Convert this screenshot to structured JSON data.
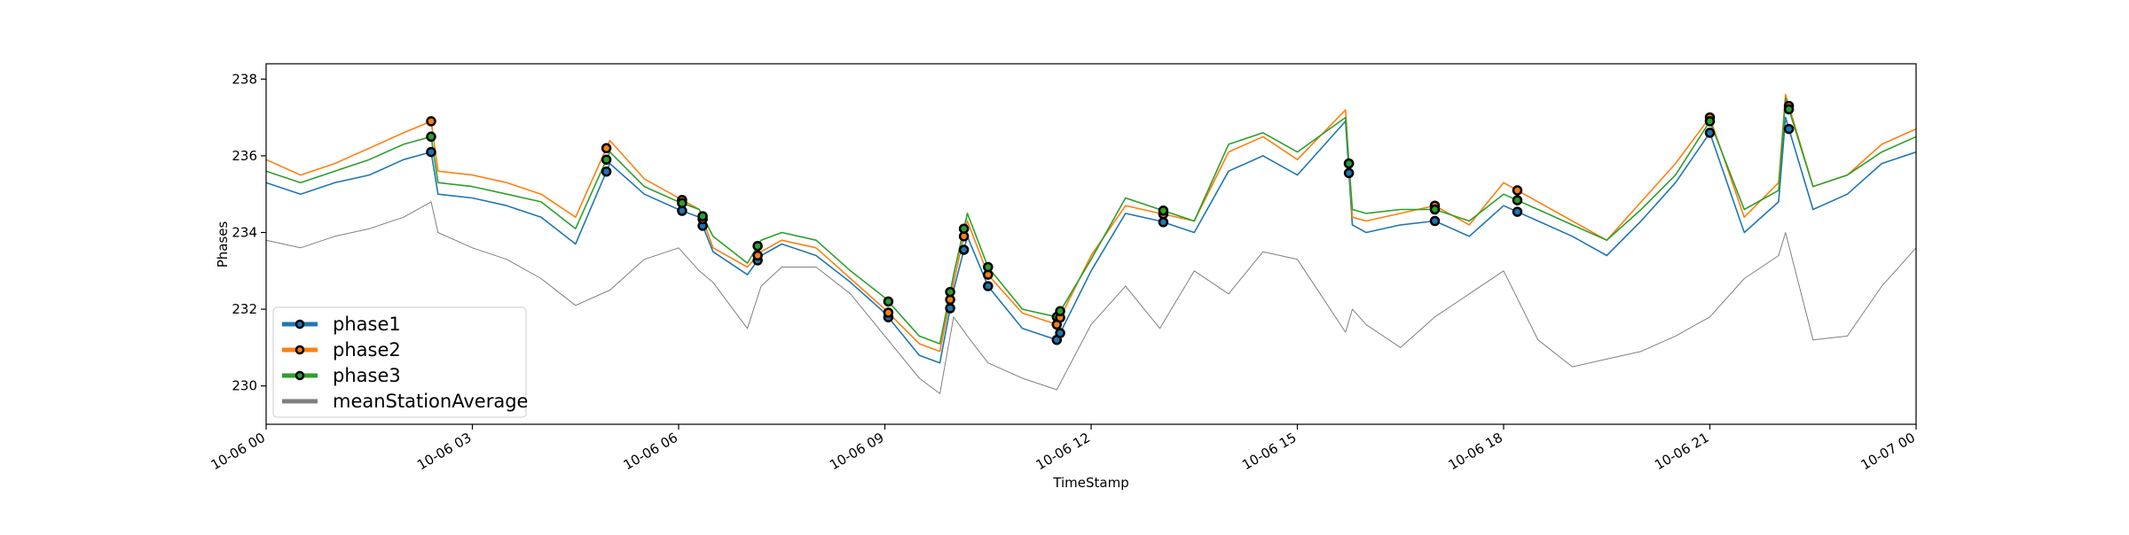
{
  "chart_data": {
    "type": "line",
    "title": "",
    "xlabel": "TimeStamp",
    "ylabel": "Phases",
    "xlim_hours": [
      0,
      24
    ],
    "ylim": [
      229.0,
      238.4
    ],
    "grid": false,
    "legend_position": "lower-left",
    "x_tick_labels": [
      "10-06 00",
      "10-06 03",
      "10-06 06",
      "10-06 09",
      "10-06 12",
      "10-06 15",
      "10-06 18",
      "10-06 21",
      "10-07 00"
    ],
    "y_ticks": [
      230,
      232,
      234,
      236,
      238
    ],
    "x_hours": [
      0,
      0.5,
      1,
      1.5,
      2,
      2.4,
      2.5,
      3,
      3.5,
      4,
      4.5,
      5,
      5.5,
      6,
      6.3,
      6.5,
      7,
      7.2,
      7.5,
      8,
      8.5,
      9,
      9.5,
      9.8,
      10,
      10.2,
      10.5,
      11,
      11.5,
      12,
      12.5,
      13,
      13.5,
      14,
      14.5,
      15,
      15.7,
      15.8,
      16,
      16.5,
      17,
      17.5,
      18,
      18.5,
      19,
      19.5,
      20,
      20.5,
      21,
      21.5,
      22,
      22.1,
      22.5,
      23,
      23.5,
      24
    ],
    "series": [
      {
        "name": "phase1",
        "color": "#1f77b4",
        "values": [
          235.3,
          235.0,
          235.3,
          235.5,
          235.9,
          236.1,
          235.0,
          234.9,
          234.7,
          234.4,
          233.7,
          235.8,
          235.0,
          234.6,
          234.4,
          233.5,
          232.9,
          233.4,
          233.7,
          233.4,
          232.7,
          231.9,
          230.8,
          230.6,
          232.5,
          233.9,
          232.6,
          231.5,
          231.2,
          233.0,
          234.5,
          234.3,
          234.0,
          235.6,
          236.0,
          235.5,
          236.9,
          234.2,
          234.0,
          234.2,
          234.3,
          233.9,
          234.7,
          234.3,
          233.9,
          233.4,
          234.3,
          235.3,
          236.6,
          234.0,
          234.8,
          237.0,
          234.6,
          235.0,
          235.8,
          236.1
        ]
      },
      {
        "name": "phase2",
        "color": "#ff7f0e",
        "values": [
          235.9,
          235.5,
          235.8,
          236.2,
          236.6,
          236.9,
          235.6,
          235.5,
          235.3,
          235.0,
          234.4,
          236.4,
          235.4,
          234.9,
          234.6,
          233.6,
          233.1,
          233.5,
          233.8,
          233.6,
          232.8,
          232.0,
          231.1,
          230.9,
          232.7,
          234.3,
          232.9,
          231.9,
          231.6,
          233.4,
          234.7,
          234.5,
          234.3,
          236.1,
          236.5,
          235.9,
          237.2,
          234.4,
          234.3,
          234.5,
          234.7,
          234.2,
          235.3,
          234.8,
          234.3,
          233.8,
          234.8,
          235.8,
          237.0,
          234.4,
          235.3,
          237.6,
          235.2,
          235.5,
          236.3,
          236.7
        ]
      },
      {
        "name": "phase3",
        "color": "#2ca02c",
        "values": [
          235.6,
          235.3,
          235.6,
          235.9,
          236.3,
          236.5,
          235.3,
          235.2,
          235.0,
          234.8,
          234.1,
          236.1,
          235.2,
          234.8,
          234.6,
          233.9,
          233.2,
          233.8,
          234.0,
          233.8,
          233.0,
          232.3,
          231.3,
          231.1,
          232.9,
          234.5,
          233.1,
          232.0,
          231.8,
          233.3,
          234.9,
          234.6,
          234.3,
          236.3,
          236.6,
          236.1,
          237.0,
          234.6,
          234.5,
          234.6,
          234.6,
          234.3,
          235.0,
          234.6,
          234.2,
          233.8,
          234.6,
          235.5,
          236.9,
          234.6,
          235.1,
          237.5,
          235.2,
          235.5,
          236.1,
          236.5
        ]
      },
      {
        "name": "meanStationAverage",
        "color": "#808080",
        "values": [
          233.8,
          233.6,
          233.9,
          234.1,
          234.4,
          234.8,
          234.0,
          233.6,
          233.3,
          232.8,
          232.1,
          232.5,
          233.3,
          233.6,
          233.0,
          232.7,
          231.5,
          232.6,
          233.1,
          233.1,
          232.4,
          231.3,
          230.2,
          229.8,
          231.8,
          231.3,
          230.6,
          230.2,
          229.9,
          231.6,
          232.6,
          231.5,
          233.0,
          232.4,
          233.5,
          233.3,
          231.4,
          232.0,
          231.6,
          231.0,
          231.8,
          232.4,
          233.0,
          231.2,
          230.5,
          230.7,
          230.9,
          231.3,
          231.8,
          232.8,
          233.4,
          234.0,
          231.2,
          231.3,
          232.6,
          233.6
        ]
      }
    ],
    "marker_hours": [
      2.4,
      4.95,
      6.05,
      6.35,
      7.15,
      9.05,
      9.95,
      10.15,
      10.5,
      11.5,
      11.55,
      13.05,
      15.75,
      17.0,
      18.2,
      21.0,
      22.15
    ]
  }
}
